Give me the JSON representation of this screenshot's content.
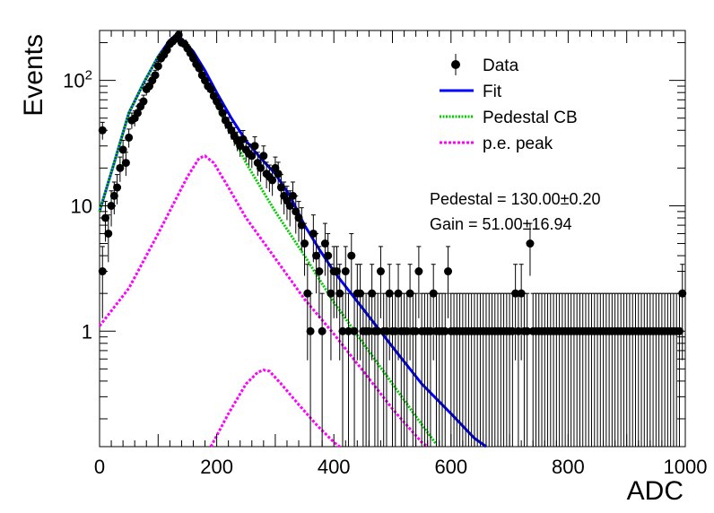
{
  "chart_data": {
    "type": "scatter",
    "title": "",
    "xlabel": "ADC",
    "ylabel": "Events",
    "xlim": [
      0,
      1000
    ],
    "ylim": [
      0.12,
      250
    ],
    "yscale": "log",
    "grid": false,
    "legend_placement": "top-right",
    "x_ticks": [
      {
        "value": 0,
        "label": "0"
      },
      {
        "value": 200,
        "label": "200"
      },
      {
        "value": 400,
        "label": "400"
      },
      {
        "value": 600,
        "label": "600"
      },
      {
        "value": 800,
        "label": "800"
      },
      {
        "value": 1000,
        "label": "1000"
      }
    ],
    "y_ticks": [
      {
        "value": 1,
        "label": "1"
      },
      {
        "value": 10,
        "label": "10"
      },
      {
        "value": 100,
        "label": "10",
        "exp": "2"
      }
    ],
    "legend": [
      {
        "key": "data",
        "label": "Data",
        "color": "#000000",
        "style": "marker"
      },
      {
        "key": "fit",
        "label": "Fit",
        "color": "#0000ff",
        "style": "solid"
      },
      {
        "key": "pedestal",
        "label": "Pedestal CB",
        "color": "#00cc00",
        "style": "dotted"
      },
      {
        "key": "pe",
        "label": "p.e. peak",
        "color": "#ff00ff",
        "style": "dashed"
      }
    ],
    "annotations": [
      {
        "text": "Pedestal = 130.00±0.20"
      },
      {
        "text": "Gain = 51.00±16.94"
      }
    ],
    "series": [
      {
        "name": "Data",
        "marker": "circle-with-error",
        "points": [
          [
            5,
            40
          ],
          [
            5,
            3
          ],
          [
            10,
            8
          ],
          [
            15,
            6
          ],
          [
            20,
            10
          ],
          [
            25,
            12
          ],
          [
            30,
            14
          ],
          [
            35,
            20
          ],
          [
            40,
            28
          ],
          [
            45,
            22
          ],
          [
            50,
            35
          ],
          [
            55,
            48
          ],
          [
            60,
            50
          ],
          [
            65,
            55
          ],
          [
            70,
            62
          ],
          [
            75,
            68
          ],
          [
            80,
            85
          ],
          [
            85,
            90
          ],
          [
            90,
            100
          ],
          [
            95,
            110
          ],
          [
            100,
            130
          ],
          [
            105,
            150
          ],
          [
            110,
            160
          ],
          [
            115,
            175
          ],
          [
            120,
            195
          ],
          [
            125,
            205
          ],
          [
            130,
            215
          ],
          [
            135,
            230
          ],
          [
            140,
            200
          ],
          [
            145,
            195
          ],
          [
            150,
            180
          ],
          [
            155,
            165
          ],
          [
            160,
            150
          ],
          [
            165,
            135
          ],
          [
            170,
            125
          ],
          [
            175,
            110
          ],
          [
            180,
            100
          ],
          [
            185,
            90
          ],
          [
            190,
            85
          ],
          [
            195,
            75
          ],
          [
            200,
            68
          ],
          [
            205,
            62
          ],
          [
            210,
            55
          ],
          [
            215,
            48
          ],
          [
            220,
            44
          ],
          [
            225,
            40
          ],
          [
            230,
            36
          ],
          [
            235,
            33
          ],
          [
            240,
            30
          ],
          [
            245,
            34
          ],
          [
            250,
            28
          ],
          [
            255,
            26
          ],
          [
            260,
            25
          ],
          [
            265,
            30
          ],
          [
            270,
            22
          ],
          [
            275,
            20
          ],
          [
            280,
            25
          ],
          [
            285,
            18
          ],
          [
            290,
            17
          ],
          [
            295,
            16
          ],
          [
            300,
            20
          ],
          [
            305,
            18
          ],
          [
            310,
            14
          ],
          [
            315,
            12
          ],
          [
            320,
            11
          ],
          [
            325,
            10
          ],
          [
            330,
            12
          ],
          [
            335,
            9
          ],
          [
            340,
            8
          ],
          [
            345,
            7
          ],
          [
            350,
            5
          ],
          [
            355,
            2
          ],
          [
            360,
            1
          ],
          [
            365,
            6
          ],
          [
            370,
            4
          ],
          [
            375,
            3
          ],
          [
            380,
            1
          ],
          [
            385,
            5
          ],
          [
            390,
            4
          ],
          [
            395,
            2
          ],
          [
            400,
            3
          ],
          [
            405,
            3
          ],
          [
            410,
            2
          ],
          [
            415,
            1
          ],
          [
            420,
            3
          ],
          [
            425,
            1
          ],
          [
            430,
            4
          ],
          [
            435,
            1
          ],
          [
            440,
            2
          ],
          [
            445,
            2
          ],
          [
            450,
            1
          ],
          [
            455,
            1
          ],
          [
            460,
            1
          ],
          [
            465,
            2
          ],
          [
            470,
            1
          ],
          [
            475,
            1
          ],
          [
            480,
            3
          ],
          [
            485,
            1
          ],
          [
            490,
            1
          ],
          [
            495,
            2
          ],
          [
            500,
            1
          ],
          [
            505,
            1
          ],
          [
            510,
            2
          ],
          [
            515,
            1
          ],
          [
            520,
            1
          ],
          [
            525,
            1
          ],
          [
            530,
            2
          ],
          [
            535,
            1
          ],
          [
            540,
            1
          ],
          [
            545,
            3
          ],
          [
            550,
            1
          ],
          [
            555,
            1
          ],
          [
            560,
            1
          ],
          [
            565,
            1
          ],
          [
            570,
            2
          ],
          [
            575,
            1
          ],
          [
            580,
            1
          ],
          [
            585,
            1
          ],
          [
            590,
            1
          ],
          [
            595,
            3
          ],
          [
            600,
            1
          ],
          [
            605,
            1
          ],
          [
            610,
            1
          ],
          [
            615,
            1
          ],
          [
            620,
            1
          ],
          [
            625,
            1
          ],
          [
            630,
            1
          ],
          [
            635,
            1
          ],
          [
            640,
            1
          ],
          [
            645,
            1
          ],
          [
            650,
            1
          ],
          [
            655,
            1
          ],
          [
            660,
            1
          ],
          [
            665,
            1
          ],
          [
            670,
            1
          ],
          [
            675,
            1
          ],
          [
            680,
            1
          ],
          [
            685,
            1
          ],
          [
            690,
            1
          ],
          [
            695,
            1
          ],
          [
            700,
            1
          ],
          [
            705,
            1
          ],
          [
            710,
            2
          ],
          [
            715,
            1
          ],
          [
            720,
            2
          ],
          [
            725,
            1
          ],
          [
            730,
            1
          ],
          [
            735,
            5
          ],
          [
            740,
            1
          ],
          [
            745,
            1
          ],
          [
            750,
            1
          ],
          [
            755,
            1
          ],
          [
            760,
            1
          ],
          [
            765,
            1
          ],
          [
            770,
            1
          ],
          [
            775,
            1
          ],
          [
            780,
            1
          ],
          [
            785,
            1
          ],
          [
            790,
            1
          ],
          [
            795,
            1
          ],
          [
            800,
            1
          ],
          [
            805,
            1
          ],
          [
            810,
            1
          ],
          [
            815,
            1
          ],
          [
            820,
            1
          ],
          [
            825,
            1
          ],
          [
            830,
            1
          ],
          [
            835,
            1
          ],
          [
            840,
            1
          ],
          [
            845,
            1
          ],
          [
            850,
            1
          ],
          [
            855,
            1
          ],
          [
            860,
            1
          ],
          [
            865,
            1
          ],
          [
            870,
            1
          ],
          [
            875,
            1
          ],
          [
            880,
            1
          ],
          [
            885,
            1
          ],
          [
            890,
            1
          ],
          [
            895,
            1
          ],
          [
            900,
            1
          ],
          [
            905,
            1
          ],
          [
            910,
            1
          ],
          [
            915,
            1
          ],
          [
            920,
            1
          ],
          [
            925,
            1
          ],
          [
            930,
            1
          ],
          [
            935,
            1
          ],
          [
            940,
            1
          ],
          [
            945,
            1
          ],
          [
            950,
            1
          ],
          [
            955,
            1
          ],
          [
            960,
            1
          ],
          [
            965,
            1
          ],
          [
            970,
            1
          ],
          [
            975,
            1
          ],
          [
            980,
            1
          ],
          [
            985,
            1
          ],
          [
            990,
            1
          ],
          [
            995,
            2
          ]
        ]
      },
      {
        "name": "Fit",
        "points": [
          [
            0,
            9
          ],
          [
            25,
            22
          ],
          [
            50,
            55
          ],
          [
            75,
            95
          ],
          [
            100,
            155
          ],
          [
            120,
            210
          ],
          [
            130,
            230
          ],
          [
            140,
            215
          ],
          [
            160,
            170
          ],
          [
            180,
            120
          ],
          [
            200,
            80
          ],
          [
            225,
            50
          ],
          [
            250,
            33
          ],
          [
            275,
            24
          ],
          [
            300,
            18
          ],
          [
            325,
            12
          ],
          [
            350,
            7
          ],
          [
            375,
            4.5
          ],
          [
            400,
            3
          ],
          [
            450,
            1.5
          ],
          [
            500,
            0.75
          ],
          [
            550,
            0.38
          ],
          [
            600,
            0.22
          ],
          [
            640,
            0.14
          ],
          [
            660,
            0.12
          ]
        ]
      },
      {
        "name": "Pedestal CB",
        "points": [
          [
            0,
            9
          ],
          [
            25,
            22
          ],
          [
            50,
            55
          ],
          [
            75,
            95
          ],
          [
            100,
            155
          ],
          [
            120,
            200
          ],
          [
            130,
            215
          ],
          [
            140,
            195
          ],
          [
            160,
            150
          ],
          [
            180,
            100
          ],
          [
            200,
            62
          ],
          [
            225,
            38
          ],
          [
            250,
            22
          ],
          [
            275,
            14
          ],
          [
            300,
            9
          ],
          [
            325,
            6
          ],
          [
            350,
            4
          ],
          [
            375,
            2.6
          ],
          [
            400,
            1.7
          ],
          [
            450,
            0.8
          ],
          [
            500,
            0.38
          ],
          [
            550,
            0.18
          ],
          [
            575,
            0.125
          ]
        ]
      },
      {
        "name": "p.e. peak",
        "segments": [
          [
            [
              0,
              1.1
            ],
            [
              50,
              2.2
            ],
            [
              100,
              6
            ],
            [
              150,
              17
            ],
            [
              170,
              24
            ],
            [
              180,
              25
            ],
            [
              195,
              22
            ],
            [
              220,
              14
            ],
            [
              250,
              8
            ],
            [
              300,
              3.8
            ],
            [
              350,
              1.8
            ],
            [
              400,
              0.95
            ],
            [
              450,
              0.48
            ],
            [
              500,
              0.24
            ],
            [
              550,
              0.13
            ],
            [
              560,
              0.12
            ]
          ],
          [
            [
              190,
              0.12
            ],
            [
              220,
              0.22
            ],
            [
              250,
              0.38
            ],
            [
              270,
              0.47
            ],
            [
              280,
              0.49
            ],
            [
              290,
              0.48
            ],
            [
              310,
              0.38
            ],
            [
              340,
              0.26
            ],
            [
              370,
              0.18
            ],
            [
              400,
              0.13
            ],
            [
              410,
              0.12
            ]
          ]
        ]
      }
    ]
  }
}
